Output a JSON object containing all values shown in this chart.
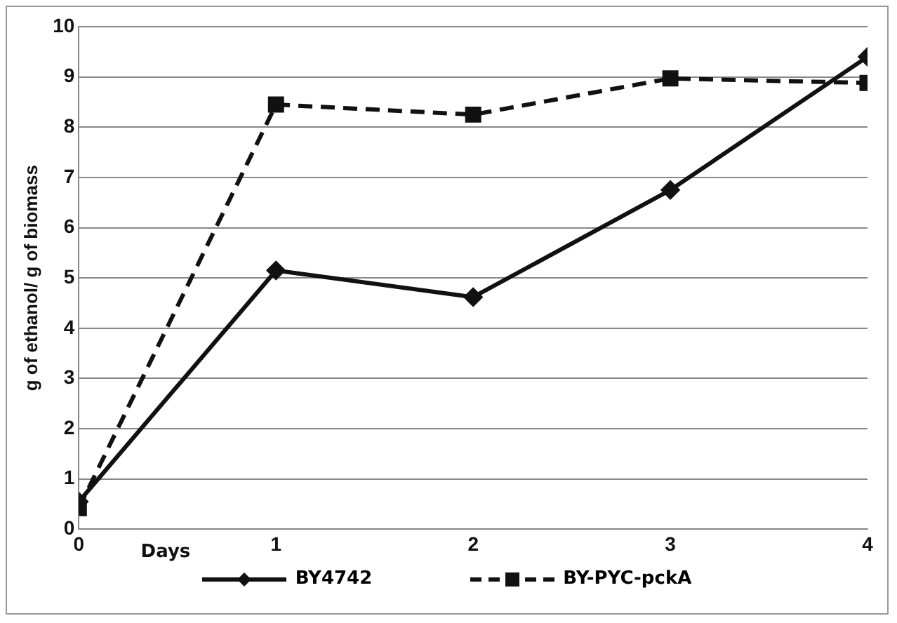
{
  "chart_data": {
    "type": "line",
    "xlabel": "Days",
    "ylabel": "g of ethanol/ g of biomass",
    "x": [
      0,
      1,
      2,
      3,
      4
    ],
    "xlim": [
      0,
      4
    ],
    "xticks": [
      0,
      1,
      2,
      3,
      4
    ],
    "ylim": [
      0,
      10
    ],
    "yticks": [
      0,
      1,
      2,
      3,
      4,
      5,
      6,
      7,
      8,
      9,
      10
    ],
    "grid": "y",
    "legend": "bottom",
    "series": [
      {
        "name": "BY4742",
        "color": "#111111",
        "values": [
          0.55,
          5.15,
          4.62,
          6.75,
          9.4
        ],
        "marker": "diamond",
        "line_style": "solid"
      },
      {
        "name": "BY-PYC-pckA",
        "color": "#111111",
        "values": [
          0.42,
          8.45,
          8.25,
          8.97,
          8.88
        ],
        "marker": "square",
        "line_style": "dashed"
      }
    ]
  }
}
